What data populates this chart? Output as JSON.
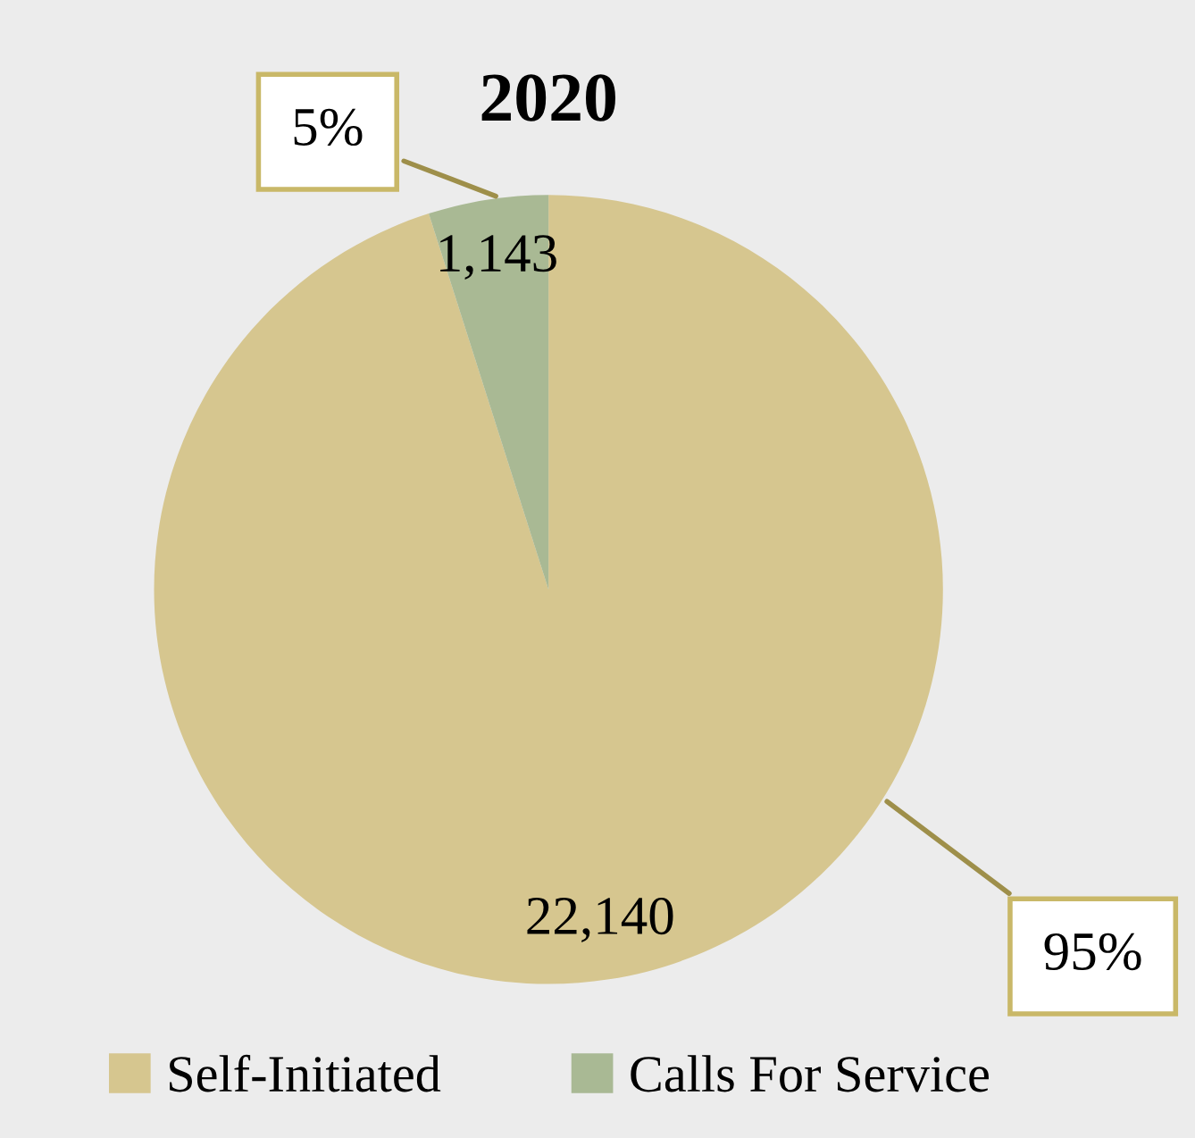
{
  "chart_data": {
    "type": "pie",
    "title": "2020",
    "categories": [
      "Self-Initiated",
      "Calls For Service"
    ],
    "values": [
      22140,
      1143
    ],
    "colors": [
      "#d6c68f",
      "#a9b994"
    ],
    "value_labels": [
      "22,140",
      "1,143"
    ],
    "annotations": [
      {
        "text": "95%",
        "x": "Self-Initiated"
      },
      {
        "text": "5%",
        "x": "Calls For Service"
      }
    ],
    "legend": "bottom"
  }
}
